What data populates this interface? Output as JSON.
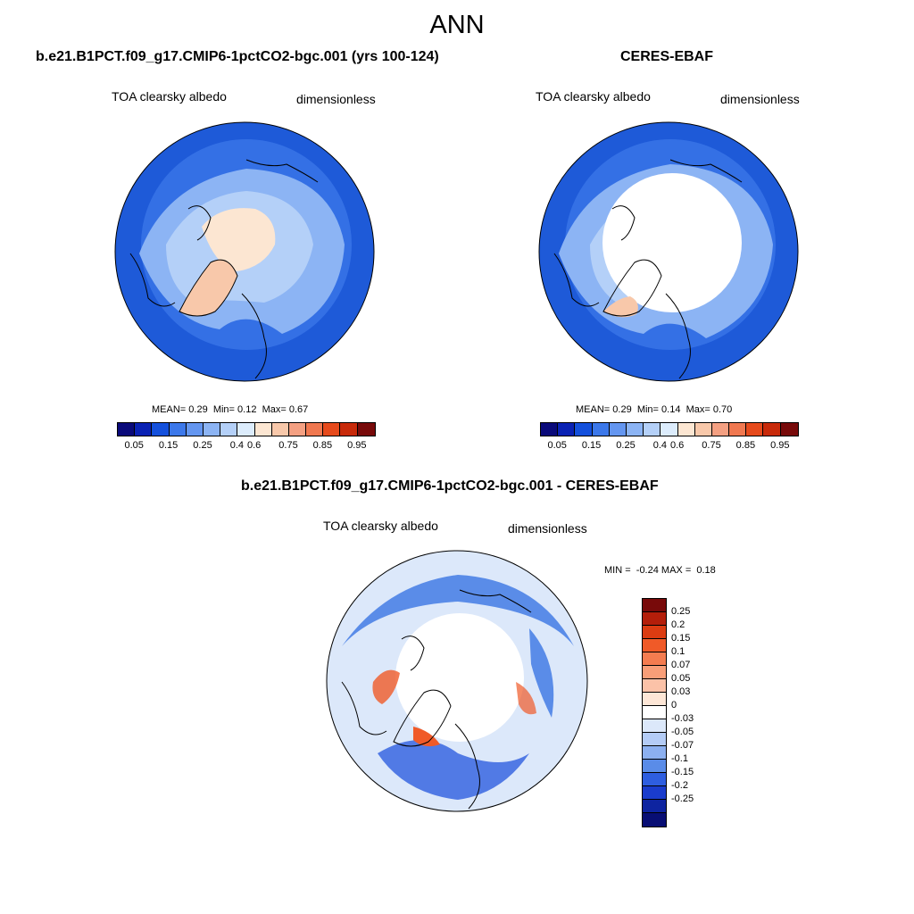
{
  "main_title": "ANN",
  "panels": [
    {
      "title": "b.e21.B1PCT.f09_g17.CMIP6-1pctCO2-bgc.001 (yrs 100-124)",
      "variable": "TOA clearsky albedo",
      "units": "dimensionless",
      "stats": {
        "mean_label": "MEAN=",
        "mean": "0.29",
        "min_label": "Min=",
        "min": "0.12",
        "max_label": "Max=",
        "max": "0.67"
      }
    },
    {
      "title": "CERES-EBAF",
      "variable": "TOA clearsky albedo",
      "units": "dimensionless",
      "stats": {
        "mean_label": "MEAN=",
        "mean": "0.29",
        "min_label": "Min=",
        "min": "0.14",
        "max_label": "Max=",
        "max": "0.70"
      }
    },
    {
      "title": "b.e21.B1PCT.f09_g17.CMIP6-1pctCO2-bgc.001 - CERES-EBAF",
      "variable": "TOA clearsky albedo",
      "units": "dimensionless",
      "stats": {
        "min_label": "MIN =",
        "min": "-0.24",
        "max_label": "MAX =",
        "max": "0.18"
      }
    }
  ],
  "abs_colorbar": {
    "colors": [
      "#0a0a7a",
      "#0a22b4",
      "#1450dc",
      "#3c78ea",
      "#6496f0",
      "#8cb4f4",
      "#b4d0f8",
      "#dcecfc",
      "#fce6d2",
      "#f8c8aa",
      "#f4a082",
      "#f07850",
      "#e64a1c",
      "#c82a0a",
      "#780a0a"
    ],
    "labels": [
      "0.05",
      "0.15",
      "0.25",
      "0.4",
      "0.6",
      "0.75",
      "0.85",
      "0.95"
    ]
  },
  "diff_colorbar": {
    "colors": [
      "#780a0a",
      "#b41e0a",
      "#dc3c12",
      "#f05a28",
      "#f47c50",
      "#f89e78",
      "#fbc2a8",
      "#fde6d6",
      "#ffffff",
      "#dce8fa",
      "#b4ccf6",
      "#8cb0f0",
      "#5a8ce8",
      "#2e5ee0",
      "#1a3ccc",
      "#0e24a0",
      "#080e74"
    ],
    "labels": [
      "0.25",
      "0.2",
      "0.15",
      "0.1",
      "0.07",
      "0.05",
      "0.03",
      "0",
      "-0.03",
      "-0.05",
      "-0.07",
      "-0.1",
      "-0.15",
      "-0.2",
      "-0.25"
    ]
  },
  "map_colors": {
    "ocean_deep": "#1e5ad8",
    "ocean_mid": "#3c78ea",
    "band_light": "#8cb4f4",
    "band_pale": "#b4d0f8",
    "polar_high": "#fce6d2",
    "greenland": "#f8c8aa",
    "missing": "#ffffff",
    "diff_base": "#dce8fa",
    "diff_blue": "#5a8ce8",
    "diff_deep": "#2e5ee0",
    "diff_red": "#f05a28"
  }
}
